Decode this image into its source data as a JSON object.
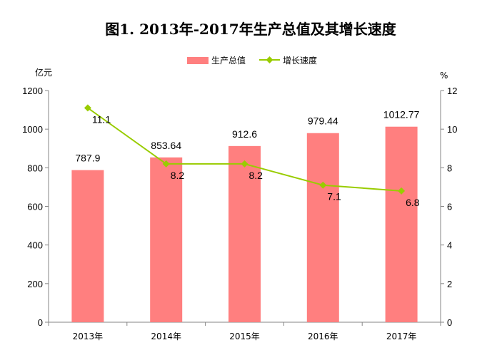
{
  "chart_data": {
    "type": "bar",
    "title": "图1. 2013年-2017年生产总值及其增长速度",
    "categories": [
      "2013年",
      "2014年",
      "2015年",
      "2016年",
      "2017年"
    ],
    "series": [
      {
        "name": "生产总值",
        "type": "bar",
        "axis": "left",
        "values": [
          787.9,
          853.64,
          912.6,
          979.44,
          1012.77
        ],
        "labels": [
          "787.9",
          "853.64",
          "912.6",
          "979.44",
          "1012.77"
        ],
        "color": "#FF7F7F"
      },
      {
        "name": "增长速度",
        "type": "line",
        "axis": "right",
        "values": [
          11.1,
          8.2,
          8.2,
          7.1,
          6.8
        ],
        "labels": [
          "11.1",
          "8.2",
          "8.2",
          "7.1",
          "6.8"
        ],
        "color": "#99CC00"
      }
    ],
    "y_left": {
      "unit": "亿元",
      "ylim": [
        0,
        1200
      ],
      "ticks": [
        0,
        200,
        400,
        600,
        800,
        1000,
        1200
      ],
      "tick_labels": [
        "0",
        "200",
        "400",
        "600",
        "800",
        "1000",
        "1200"
      ]
    },
    "y_right": {
      "unit": "%",
      "ylim": [
        0,
        12
      ],
      "ticks": [
        0,
        2,
        4,
        6,
        8,
        10,
        12
      ],
      "tick_labels": [
        "0",
        "2",
        "4",
        "6",
        "8",
        "10",
        "12"
      ]
    },
    "grid": false,
    "legend_position": "top-center"
  }
}
